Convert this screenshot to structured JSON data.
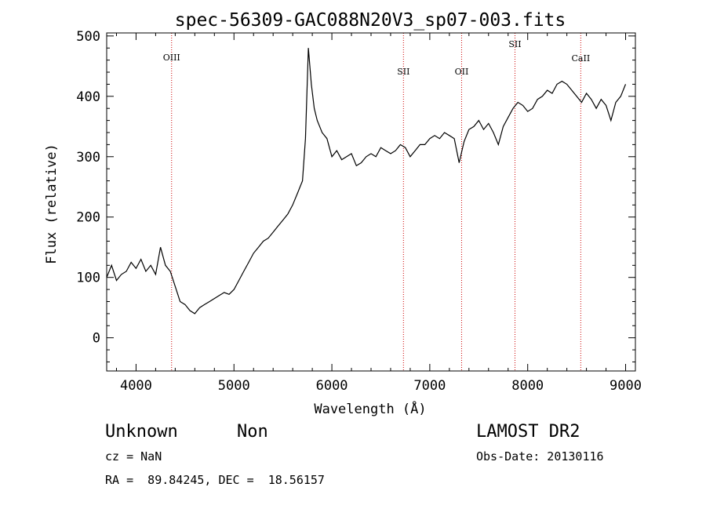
{
  "chart_data": {
    "type": "line",
    "title": "spec-56309-GAC088N20V3_sp07-003.fits",
    "xlabel": "Wavelength (Å)",
    "ylabel": "Flux (relative)",
    "xlim": [
      3700,
      9100
    ],
    "ylim": [
      -55,
      505
    ],
    "xticks": [
      4000,
      5000,
      6000,
      7000,
      8000,
      9000
    ],
    "yticks": [
      0,
      100,
      200,
      300,
      400,
      500
    ],
    "grid": false,
    "series": [
      {
        "x": [
          3700,
          3750,
          3800,
          3850,
          3900,
          3950,
          4000,
          4050,
          4100,
          4150,
          4200,
          4250,
          4300,
          4350,
          4400,
          4450,
          4500,
          4550,
          4600,
          4650,
          4700,
          4750,
          4800,
          4850,
          4900,
          4950,
          5000,
          5050,
          5100,
          5150,
          5200,
          5250,
          5300,
          5350,
          5400,
          5450,
          5500,
          5550,
          5600,
          5650,
          5700,
          5730,
          5760,
          5790,
          5820,
          5850,
          5900,
          5950,
          6000,
          6050,
          6100,
          6150,
          6200,
          6250,
          6300,
          6350,
          6400,
          6450,
          6500,
          6550,
          6600,
          6650,
          6700,
          6750,
          6800,
          6850,
          6900,
          6950,
          7000,
          7050,
          7100,
          7150,
          7200,
          7250,
          7300,
          7350,
          7400,
          7450,
          7500,
          7550,
          7600,
          7650,
          7700,
          7750,
          7800,
          7850,
          7900,
          7950,
          8000,
          8050,
          8100,
          8150,
          8200,
          8250,
          8300,
          8350,
          8400,
          8450,
          8500,
          8550,
          8600,
          8650,
          8700,
          8750,
          8800,
          8850,
          8900,
          8950,
          9000
        ],
        "y": [
          100,
          120,
          95,
          105,
          110,
          125,
          115,
          130,
          110,
          120,
          105,
          150,
          120,
          110,
          85,
          60,
          55,
          45,
          40,
          50,
          55,
          60,
          65,
          70,
          75,
          72,
          80,
          95,
          110,
          125,
          140,
          150,
          160,
          165,
          175,
          185,
          195,
          205,
          220,
          240,
          260,
          330,
          480,
          420,
          380,
          360,
          340,
          330,
          300,
          310,
          295,
          300,
          305,
          285,
          290,
          300,
          305,
          300,
          315,
          310,
          305,
          310,
          320,
          315,
          300,
          310,
          320,
          320,
          330,
          335,
          330,
          340,
          335,
          330,
          290,
          325,
          345,
          350,
          360,
          345,
          355,
          340,
          320,
          350,
          365,
          380,
          390,
          385,
          375,
          380,
          395,
          400,
          410,
          405,
          420,
          425,
          420,
          410,
          400,
          390,
          405,
          395,
          380,
          395,
          385,
          360,
          390,
          400,
          420
        ]
      }
    ],
    "annotations": [
      {
        "label": "OIII",
        "x": 4363
      },
      {
        "label": "SII",
        "x": 6731
      },
      {
        "label": "OII",
        "x": 7325
      },
      {
        "label": "SII",
        "x": 7870
      },
      {
        "label": "CaII",
        "x": 8542
      }
    ]
  },
  "footer": {
    "object_class": "Unknown",
    "subclass": "Non",
    "survey": "LAMOST DR2",
    "redshift": "cz = NaN",
    "obs_date": "Obs-Date: 20130116",
    "coords": "RA =  89.84245, DEC =  18.56157"
  },
  "colors": {
    "spectrum": "#000000",
    "line_marker": "#cc0000"
  }
}
